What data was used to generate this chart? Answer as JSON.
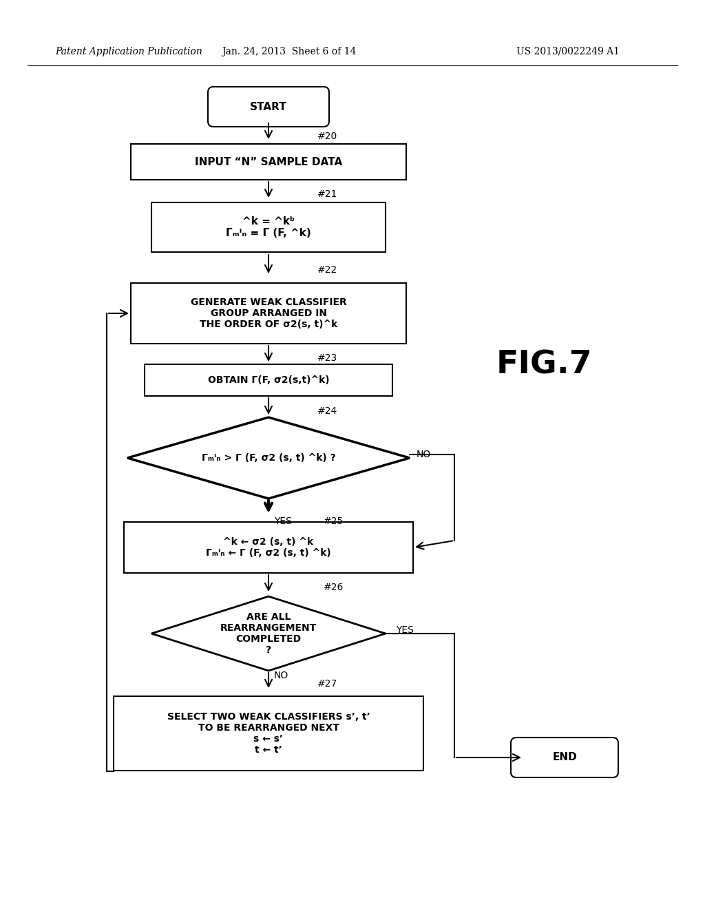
{
  "bg_color": "#ffffff",
  "header_left": "Patent Application Publication",
  "header_mid": "Jan. 24, 2013  Sheet 6 of 14",
  "header_right": "US 2013/0022249 A1",
  "fig_label": "FIG.7"
}
